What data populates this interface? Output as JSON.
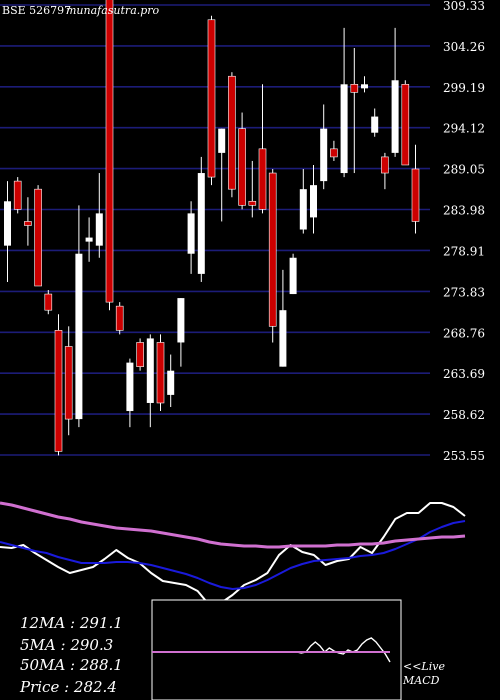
{
  "header": {
    "ticker": "BSE 526797",
    "site": "munafasutra.pro"
  },
  "price_axis": {
    "labels": [
      "309.33",
      "304.26",
      "299.19",
      "294.12",
      "289.05",
      "283.98",
      "278.91",
      "273.83",
      "268.76",
      "263.69",
      "258.62",
      "253.55"
    ]
  },
  "stats": {
    "ma12": "12MA : 291.1",
    "ma5": "5MA : 290.3",
    "ma50": "50MA : 288.1",
    "price": "Price   : 282.4"
  },
  "macd_label": {
    "line1": "<<Live",
    "line2": "MACD"
  },
  "colors": {
    "background": "#000000",
    "grid": "#1c1c78",
    "up_candle": "#ffffff",
    "down_candle": "#cc0000",
    "ma_blue": "#1a1adb",
    "ma_pink": "#d070d0",
    "white_line": "#ffffff"
  },
  "chart_data": [
    {
      "type": "candlestick",
      "y_axis_labels": [
        309.33,
        304.26,
        299.19,
        294.12,
        289.05,
        283.98,
        278.91,
        273.83,
        268.76,
        263.69,
        258.62,
        253.55
      ],
      "ylim": [
        253.55,
        309.33
      ],
      "grid": true,
      "candles": [
        {
          "o": 279.5,
          "h": 287.5,
          "l": 275.0,
          "c": 285.0,
          "dir": "up"
        },
        {
          "o": 287.5,
          "h": 288.0,
          "l": 283.5,
          "c": 284.0,
          "dir": "down"
        },
        {
          "o": 282.5,
          "h": 285.5,
          "l": 279.5,
          "c": 282.0,
          "dir": "down"
        },
        {
          "o": 286.5,
          "h": 287.0,
          "l": 274.5,
          "c": 274.5,
          "dir": "down"
        },
        {
          "o": 273.5,
          "h": 274.0,
          "l": 271.0,
          "c": 271.5,
          "dir": "down"
        },
        {
          "o": 269.0,
          "h": 271.0,
          "l": 253.5,
          "c": 254.0,
          "dir": "down"
        },
        {
          "o": 267.0,
          "h": 269.5,
          "l": 256.0,
          "c": 258.0,
          "dir": "down"
        },
        {
          "o": 258.0,
          "h": 284.5,
          "l": 257.0,
          "c": 278.5,
          "dir": "up"
        },
        {
          "o": 280.0,
          "h": 283.0,
          "l": 277.5,
          "c": 280.5,
          "dir": "up"
        },
        {
          "o": 283.5,
          "h": 288.5,
          "l": 278.0,
          "c": 279.5,
          "dir": "up"
        },
        {
          "o": 310.0,
          "h": 311.0,
          "l": 271.5,
          "c": 272.5,
          "dir": "down"
        },
        {
          "o": 272.0,
          "h": 272.5,
          "l": 268.5,
          "c": 269.0,
          "dir": "down"
        },
        {
          "o": 259.0,
          "h": 265.5,
          "l": 257.0,
          "c": 265.0,
          "dir": "up"
        },
        {
          "o": 267.5,
          "h": 268.0,
          "l": 264.0,
          "c": 264.5,
          "dir": "down"
        },
        {
          "o": 260.0,
          "h": 268.5,
          "l": 257.0,
          "c": 268.0,
          "dir": "up"
        },
        {
          "o": 267.5,
          "h": 268.5,
          "l": 259.0,
          "c": 260.0,
          "dir": "down"
        },
        {
          "o": 261.0,
          "h": 266.0,
          "l": 259.5,
          "c": 264.0,
          "dir": "up"
        },
        {
          "o": 267.5,
          "h": 273.0,
          "l": 264.5,
          "c": 273.0,
          "dir": "up"
        },
        {
          "o": 278.5,
          "h": 285.0,
          "l": 276.0,
          "c": 283.5,
          "dir": "up"
        },
        {
          "o": 276.0,
          "h": 290.5,
          "l": 275.0,
          "c": 288.5,
          "dir": "up"
        },
        {
          "o": 307.5,
          "h": 308.0,
          "l": 287.0,
          "c": 288.0,
          "dir": "down"
        },
        {
          "o": 291.0,
          "h": 294.0,
          "l": 282.5,
          "c": 294.0,
          "dir": "up"
        },
        {
          "o": 300.5,
          "h": 301.0,
          "l": 285.5,
          "c": 286.5,
          "dir": "down"
        },
        {
          "o": 294.0,
          "h": 296.0,
          "l": 284.0,
          "c": 284.5,
          "dir": "down"
        },
        {
          "o": 285.0,
          "h": 290.0,
          "l": 283.0,
          "c": 284.5,
          "dir": "down"
        },
        {
          "o": 291.5,
          "h": 299.5,
          "l": 283.5,
          "c": 284.0,
          "dir": "down"
        },
        {
          "o": 288.5,
          "h": 289.0,
          "l": 267.5,
          "c": 269.5,
          "dir": "down"
        },
        {
          "o": 264.5,
          "h": 276.5,
          "l": 264.5,
          "c": 271.5,
          "dir": "up"
        },
        {
          "o": 273.5,
          "h": 278.5,
          "l": 273.5,
          "c": 278.0,
          "dir": "up"
        },
        {
          "o": 281.5,
          "h": 289.0,
          "l": 281.0,
          "c": 286.5,
          "dir": "up"
        },
        {
          "o": 283.0,
          "h": 289.5,
          "l": 281.0,
          "c": 287.0,
          "dir": "up"
        },
        {
          "o": 287.5,
          "h": 297.0,
          "l": 286.5,
          "c": 294.0,
          "dir": "up"
        },
        {
          "o": 291.5,
          "h": 292.5,
          "l": 290.0,
          "c": 290.5,
          "dir": "down"
        },
        {
          "o": 288.5,
          "h": 306.5,
          "l": 288.0,
          "c": 299.5,
          "dir": "up"
        },
        {
          "o": 299.5,
          "h": 304.0,
          "l": 288.5,
          "c": 298.5,
          "dir": "down"
        },
        {
          "o": 299.0,
          "h": 300.5,
          "l": 298.5,
          "c": 299.5,
          "dir": "up"
        },
        {
          "o": 293.5,
          "h": 296.5,
          "l": 293.0,
          "c": 295.5,
          "dir": "up"
        },
        {
          "o": 290.5,
          "h": 291.0,
          "l": 286.5,
          "c": 288.5,
          "dir": "down"
        },
        {
          "o": 291.0,
          "h": 306.5,
          "l": 290.5,
          "c": 300.0,
          "dir": "up"
        },
        {
          "o": 299.5,
          "h": 300.0,
          "l": 289.5,
          "c": 289.5,
          "dir": "down"
        },
        {
          "o": 289.0,
          "h": 292.0,
          "l": 281.0,
          "c": 282.5,
          "dir": "down"
        }
      ]
    },
    {
      "type": "line",
      "series": [
        {
          "color": "white",
          "values": [
            68,
            67,
            70,
            62,
            55,
            48,
            42,
            45,
            48,
            56,
            65,
            57,
            52,
            42,
            34,
            32,
            30,
            24,
            10,
            12,
            20,
            30,
            35,
            42,
            60,
            70,
            63,
            60,
            50,
            54,
            56,
            68,
            62,
            78,
            96,
            102,
            102,
            112,
            112,
            108,
            99
          ]
        },
        {
          "color": "blue",
          "values": [
            73,
            70,
            67,
            64,
            62,
            58,
            55,
            52,
            52,
            52,
            53,
            53,
            52,
            50,
            47,
            44,
            41,
            37,
            32,
            28,
            26,
            27,
            30,
            35,
            41,
            47,
            51,
            54,
            55,
            56,
            57,
            59,
            60,
            62,
            66,
            71,
            76,
            83,
            88,
            92,
            94
          ]
        },
        {
          "color": "pink",
          "values": [
            112,
            110,
            107,
            104,
            101,
            98,
            96,
            93,
            91,
            89,
            87,
            86,
            85,
            84,
            82,
            80,
            78,
            76,
            73,
            71,
            70,
            69,
            69,
            68,
            68,
            69,
            69,
            69,
            69,
            70,
            70,
            71,
            71,
            72,
            74,
            75,
            76,
            77,
            78,
            78,
            79
          ]
        }
      ]
    },
    {
      "type": "line",
      "series": [
        {
          "color": "white",
          "values": [
            0,
            0,
            0,
            0,
            0,
            0,
            0,
            0,
            0,
            0,
            0,
            0,
            0,
            0,
            0,
            0,
            0,
            0,
            0,
            0,
            0,
            0,
            0,
            0,
            0,
            0,
            0,
            0,
            0,
            0,
            0,
            0,
            -0.5,
            0,
            3,
            5,
            3,
            0,
            2,
            0.5,
            -0.5,
            -1,
            1,
            0,
            1,
            4,
            6,
            7,
            5,
            2,
            -1,
            -5
          ]
        },
        {
          "color": "pink",
          "values": [
            0,
            0,
            0,
            0,
            0,
            0,
            0,
            0,
            0,
            0,
            0,
            0,
            0,
            0,
            0,
            0,
            0,
            0,
            0,
            0,
            0,
            0,
            0,
            0,
            0,
            0,
            0,
            0,
            0,
            0,
            0,
            0,
            0,
            0,
            0,
            0,
            0,
            0,
            0,
            0,
            0,
            0,
            0,
            0,
            0,
            0,
            0,
            0,
            0,
            0,
            0,
            0
          ]
        }
      ]
    }
  ]
}
